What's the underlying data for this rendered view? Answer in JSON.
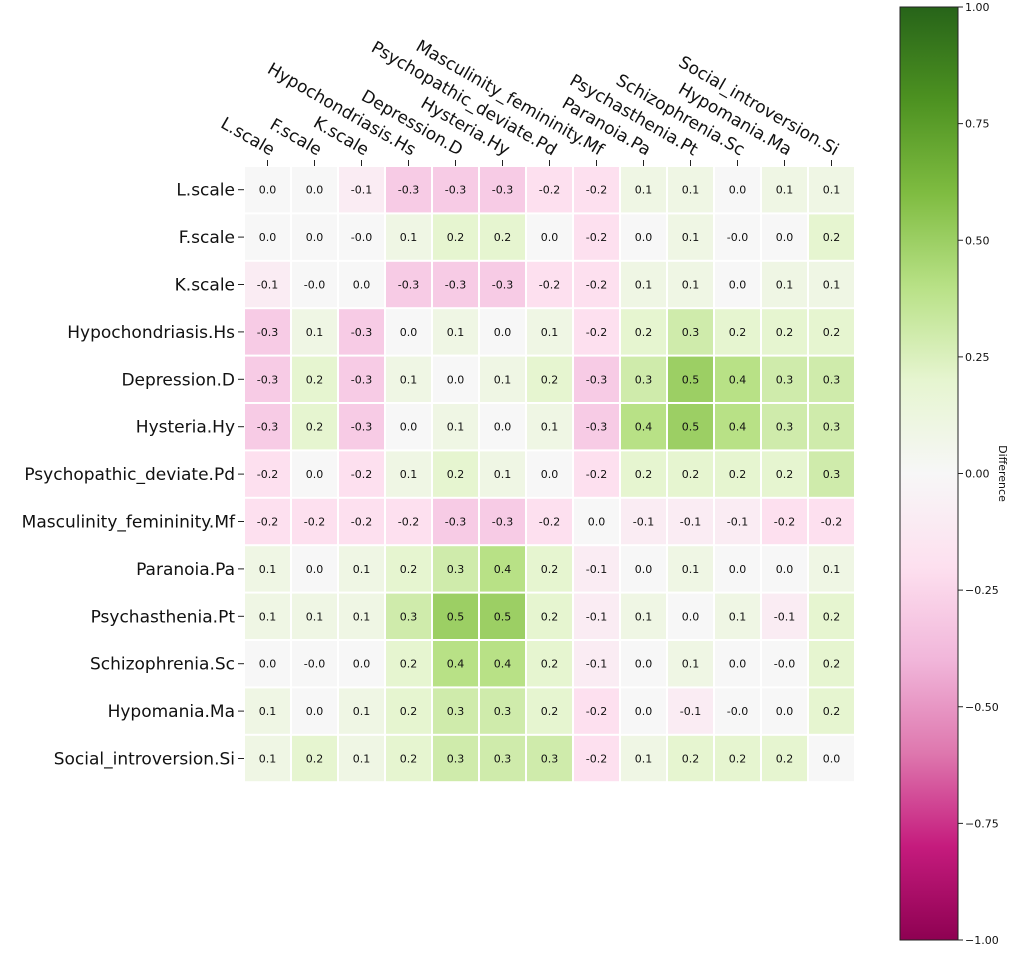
{
  "chart_data": {
    "type": "heatmap",
    "title": "",
    "row_labels": [
      "L.scale",
      "F.scale",
      "K.scale",
      "Hypochondriasis.Hs",
      "Depression.D",
      "Hysteria.Hy",
      "Psychopathic_deviate.Pd",
      "Masculinity_femininity.Mf",
      "Paranoia.Pa",
      "Psychasthenia.Pt",
      "Schizophrenia.Sc",
      "Hypomania.Ma",
      "Social_introversion.Si"
    ],
    "col_labels": [
      "L.scale",
      "F.scale",
      "K.scale",
      "Hypochondriasis.Hs",
      "Depression.D",
      "Hysteria.Hy",
      "Psychopathic_deviate.Pd",
      "Masculinity_femininity.Mf",
      "Paranoia.Pa",
      "Psychasthenia.Pt",
      "Schizophrenia.Sc",
      "Hypomania.Ma",
      "Social_introversion.Si"
    ],
    "values": [
      [
        0.0,
        0.0,
        -0.1,
        -0.3,
        -0.3,
        -0.3,
        -0.2,
        -0.2,
        0.1,
        0.1,
        0.0,
        0.1,
        0.1
      ],
      [
        0.0,
        0.0,
        -0.0,
        0.1,
        0.2,
        0.2,
        0.0,
        -0.2,
        0.0,
        0.1,
        -0.0,
        0.0,
        0.2
      ],
      [
        -0.1,
        -0.0,
        0.0,
        -0.3,
        -0.3,
        -0.3,
        -0.2,
        -0.2,
        0.1,
        0.1,
        0.0,
        0.1,
        0.1
      ],
      [
        -0.3,
        0.1,
        -0.3,
        0.0,
        0.1,
        0.0,
        0.1,
        -0.2,
        0.2,
        0.3,
        0.2,
        0.2,
        0.2
      ],
      [
        -0.3,
        0.2,
        -0.3,
        0.1,
        0.0,
        0.1,
        0.2,
        -0.3,
        0.3,
        0.5,
        0.4,
        0.3,
        0.3
      ],
      [
        -0.3,
        0.2,
        -0.3,
        0.0,
        0.1,
        0.0,
        0.1,
        -0.3,
        0.4,
        0.5,
        0.4,
        0.3,
        0.3
      ],
      [
        -0.2,
        0.0,
        -0.2,
        0.1,
        0.2,
        0.1,
        0.0,
        -0.2,
        0.2,
        0.2,
        0.2,
        0.2,
        0.3
      ],
      [
        -0.2,
        -0.2,
        -0.2,
        -0.2,
        -0.3,
        -0.3,
        -0.2,
        0.0,
        -0.1,
        -0.1,
        -0.1,
        -0.2,
        -0.2
      ],
      [
        0.1,
        0.0,
        0.1,
        0.2,
        0.3,
        0.4,
        0.2,
        -0.1,
        0.0,
        0.1,
        0.0,
        0.0,
        0.1
      ],
      [
        0.1,
        0.1,
        0.1,
        0.3,
        0.5,
        0.5,
        0.2,
        -0.1,
        0.1,
        0.0,
        0.1,
        -0.1,
        0.2
      ],
      [
        0.0,
        -0.0,
        0.0,
        0.2,
        0.4,
        0.4,
        0.2,
        -0.1,
        0.0,
        0.1,
        0.0,
        -0.0,
        0.2
      ],
      [
        0.1,
        0.0,
        0.1,
        0.2,
        0.3,
        0.3,
        0.2,
        -0.2,
        0.0,
        -0.1,
        -0.0,
        0.0,
        0.2
      ],
      [
        0.1,
        0.2,
        0.1,
        0.2,
        0.3,
        0.3,
        0.3,
        -0.2,
        0.1,
        0.2,
        0.2,
        0.2,
        0.0
      ]
    ],
    "value_labels": [
      [
        "0.0",
        "0.0",
        "-0.1",
        "-0.3",
        "-0.3",
        "-0.3",
        "-0.2",
        "-0.2",
        "0.1",
        "0.1",
        "0.0",
        "0.1",
        "0.1"
      ],
      [
        "0.0",
        "0.0",
        "-0.0",
        "0.1",
        "0.2",
        "0.2",
        "0.0",
        "-0.2",
        "0.0",
        "0.1",
        "-0.0",
        "0.0",
        "0.2"
      ],
      [
        "-0.1",
        "-0.0",
        "0.0",
        "-0.3",
        "-0.3",
        "-0.3",
        "-0.2",
        "-0.2",
        "0.1",
        "0.1",
        "0.0",
        "0.1",
        "0.1"
      ],
      [
        "-0.3",
        "0.1",
        "-0.3",
        "0.0",
        "0.1",
        "0.0",
        "0.1",
        "-0.2",
        "0.2",
        "0.3",
        "0.2",
        "0.2",
        "0.2"
      ],
      [
        "-0.3",
        "0.2",
        "-0.3",
        "0.1",
        "0.0",
        "0.1",
        "0.2",
        "-0.3",
        "0.3",
        "0.5",
        "0.4",
        "0.3",
        "0.3"
      ],
      [
        "-0.3",
        "0.2",
        "-0.3",
        "0.0",
        "0.1",
        "0.0",
        "0.1",
        "-0.3",
        "0.4",
        "0.5",
        "0.4",
        "0.3",
        "0.3"
      ],
      [
        "-0.2",
        "0.0",
        "-0.2",
        "0.1",
        "0.2",
        "0.1",
        "0.0",
        "-0.2",
        "0.2",
        "0.2",
        "0.2",
        "0.2",
        "0.3"
      ],
      [
        "-0.2",
        "-0.2",
        "-0.2",
        "-0.2",
        "-0.3",
        "-0.3",
        "-0.2",
        "0.0",
        "-0.1",
        "-0.1",
        "-0.1",
        "-0.2",
        "-0.2"
      ],
      [
        "0.1",
        "0.0",
        "0.1",
        "0.2",
        "0.3",
        "0.4",
        "0.2",
        "-0.1",
        "0.0",
        "0.1",
        "0.0",
        "0.0",
        "0.1"
      ],
      [
        "0.1",
        "0.1",
        "0.1",
        "0.3",
        "0.5",
        "0.5",
        "0.2",
        "-0.1",
        "0.1",
        "0.0",
        "0.1",
        "-0.1",
        "0.2"
      ],
      [
        "0.0",
        "-0.0",
        "0.0",
        "0.2",
        "0.4",
        "0.4",
        "0.2",
        "-0.1",
        "0.0",
        "0.1",
        "0.0",
        "-0.0",
        "0.2"
      ],
      [
        "0.1",
        "0.0",
        "0.1",
        "0.2",
        "0.3",
        "0.3",
        "0.2",
        "-0.2",
        "0.0",
        "-0.1",
        "-0.0",
        "0.0",
        "0.2"
      ],
      [
        "0.1",
        "0.2",
        "0.1",
        "0.2",
        "0.3",
        "0.3",
        "0.3",
        "-0.2",
        "0.1",
        "0.2",
        "0.2",
        "0.2",
        "0.0"
      ]
    ],
    "colorbar": {
      "label": "Difference",
      "range": [
        -1.0,
        1.0
      ],
      "ticks": [
        1.0,
        0.75,
        0.5,
        0.25,
        0.0,
        -0.25,
        -0.5,
        -0.75,
        -1.0
      ],
      "tick_labels": [
        "1.00",
        "0.75",
        "0.50",
        "0.25",
        "0.00",
        "−0.25",
        "−0.50",
        "−0.75",
        "−1.00"
      ],
      "colormap": "PiYG",
      "color_stops": [
        "#8e0152",
        "#c51b7d",
        "#de77ae",
        "#f1b6da",
        "#fde0ef",
        "#f7f7f7",
        "#e6f5d0",
        "#b8e186",
        "#7fbc41",
        "#4d9221",
        "#276419"
      ]
    },
    "column_labels_position": "top",
    "column_label_rotation_deg": -30
  }
}
